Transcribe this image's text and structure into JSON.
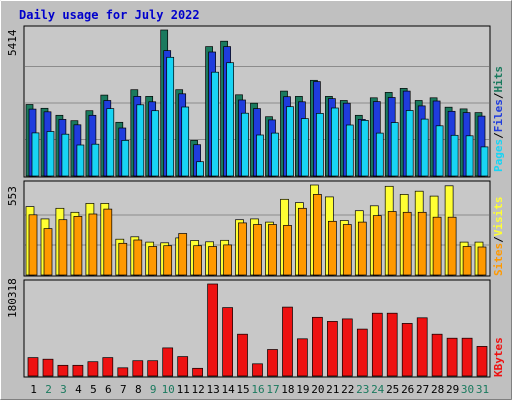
{
  "title": "Daily usage for July 2022",
  "colors": {
    "background": "#c0c0c0",
    "title": "#0000cc",
    "hits": "#1a7a5e",
    "files": "#1f3cdd",
    "pages": "#18d4f4",
    "visits": "#ffff33",
    "sites": "#ff9900",
    "kbytes": "#ee1111",
    "weekend_label": "#1a7a5e",
    "weekday_label": "#000000",
    "panel_bg": "#c8c8c8"
  },
  "legend": {
    "top": [
      {
        "label": "Pages",
        "color": "#18d4f4"
      },
      {
        "label": "/",
        "color": "#000000"
      },
      {
        "label": "Files",
        "color": "#1f3cdd"
      },
      {
        "label": "/",
        "color": "#000000"
      },
      {
        "label": "Hits",
        "color": "#1a7a5e"
      }
    ],
    "middle": [
      {
        "label": "Sites",
        "color": "#ff9900"
      },
      {
        "label": "/",
        "color": "#000000"
      },
      {
        "label": "Visits",
        "color": "#ffff33"
      }
    ],
    "bottom": [
      {
        "label": "KBytes",
        "color": "#ee1111"
      }
    ]
  },
  "chart_data": [
    {
      "type": "bar",
      "panel": "hits-files-pages",
      "ymax_label": "5414",
      "ymax": 5414,
      "categories": [
        "1",
        "2",
        "3",
        "4",
        "5",
        "6",
        "7",
        "8",
        "9",
        "10",
        "11",
        "12",
        "13",
        "14",
        "15",
        "16",
        "17",
        "18",
        "19",
        "20",
        "21",
        "22",
        "23",
        "24",
        "25",
        "26",
        "27",
        "28",
        "29",
        "30",
        "31"
      ],
      "series": [
        {
          "name": "Hits",
          "values": [
            2650,
            2510,
            2250,
            2050,
            2420,
            3000,
            1990,
            3200,
            2950,
            5414,
            3200,
            1320,
            4800,
            5000,
            3010,
            2700,
            2200,
            3150,
            2950,
            3550,
            2950,
            2800,
            2250,
            2900,
            3100,
            3250,
            2800,
            2900,
            2550,
            2490,
            2350
          ]
        },
        {
          "name": "Files",
          "values": [
            2480,
            2380,
            2100,
            1900,
            2250,
            2800,
            1780,
            2950,
            2750,
            4650,
            3050,
            1160,
            4600,
            4800,
            2820,
            2500,
            2080,
            2940,
            2750,
            3500,
            2870,
            2700,
            2100,
            2760,
            2910,
            3150,
            2600,
            2780,
            2400,
            2350,
            2220
          ]
        },
        {
          "name": "Pages",
          "values": [
            1600,
            1650,
            1550,
            1150,
            1180,
            2500,
            1320,
            2640,
            2420,
            4400,
            2560,
            530,
            3850,
            4200,
            2330,
            1520,
            1590,
            2570,
            2130,
            2320,
            2520,
            1890,
            2060,
            1590,
            1980,
            2430,
            2110,
            1860,
            1510,
            1490,
            1080
          ]
        }
      ]
    },
    {
      "type": "bar",
      "panel": "visits-sites",
      "ymax_label": "553",
      "ymax": 553,
      "categories": [
        "1",
        "2",
        "3",
        "4",
        "5",
        "6",
        "7",
        "8",
        "9",
        "10",
        "11",
        "12",
        "13",
        "14",
        "15",
        "16",
        "17",
        "18",
        "19",
        "20",
        "21",
        "22",
        "23",
        "24",
        "25",
        "26",
        "27",
        "28",
        "29",
        "30",
        "31"
      ],
      "series": [
        {
          "name": "Visits",
          "values": [
            420,
            345,
            410,
            385,
            440,
            440,
            220,
            235,
            202,
            198,
            228,
            212,
            204,
            213,
            340,
            345,
            325,
            465,
            445,
            553,
            480,
            335,
            395,
            425,
            545,
            495,
            515,
            485,
            548,
            202,
            202
          ]
        },
        {
          "name": "Sites",
          "values": [
            370,
            285,
            340,
            360,
            375,
            405,
            195,
            215,
            175,
            180,
            255,
            180,
            175,
            185,
            320,
            310,
            310,
            305,
            410,
            495,
            330,
            310,
            325,
            365,
            390,
            385,
            385,
            355,
            355,
            175,
            172
          ]
        }
      ]
    },
    {
      "type": "bar",
      "panel": "kbytes",
      "ymax_label": "180318",
      "ymax": 180318,
      "categories": [
        "1",
        "2",
        "3",
        "4",
        "5",
        "6",
        "7",
        "8",
        "9",
        "10",
        "11",
        "12",
        "13",
        "14",
        "15",
        "16",
        "17",
        "18",
        "19",
        "20",
        "21",
        "22",
        "23",
        "24",
        "25",
        "26",
        "27",
        "28",
        "29",
        "30",
        "31"
      ],
      "series": [
        {
          "name": "KBytes",
          "values": [
            36000,
            33000,
            21000,
            21000,
            28000,
            36000,
            16000,
            30000,
            30000,
            55000,
            38000,
            15000,
            180318,
            134000,
            82000,
            24000,
            52000,
            135000,
            73000,
            115000,
            107000,
            112000,
            92000,
            123000,
            123000,
            103000,
            114000,
            82000,
            74000,
            74000,
            58000
          ]
        }
      ]
    }
  ],
  "x_labels": [
    {
      "text": "1",
      "weekend": false
    },
    {
      "text": "2",
      "weekend": true
    },
    {
      "text": "3",
      "weekend": true
    },
    {
      "text": "4",
      "weekend": false
    },
    {
      "text": "5",
      "weekend": false
    },
    {
      "text": "6",
      "weekend": false
    },
    {
      "text": "7",
      "weekend": false
    },
    {
      "text": "8",
      "weekend": false
    },
    {
      "text": "9",
      "weekend": true
    },
    {
      "text": "10",
      "weekend": true
    },
    {
      "text": "11",
      "weekend": false
    },
    {
      "text": "12",
      "weekend": false
    },
    {
      "text": "13",
      "weekend": false
    },
    {
      "text": "14",
      "weekend": false
    },
    {
      "text": "15",
      "weekend": false
    },
    {
      "text": "16",
      "weekend": true
    },
    {
      "text": "17",
      "weekend": true
    },
    {
      "text": "18",
      "weekend": false
    },
    {
      "text": "19",
      "weekend": false
    },
    {
      "text": "20",
      "weekend": false
    },
    {
      "text": "21",
      "weekend": false
    },
    {
      "text": "22",
      "weekend": false
    },
    {
      "text": "23",
      "weekend": true
    },
    {
      "text": "24",
      "weekend": true
    },
    {
      "text": "25",
      "weekend": false
    },
    {
      "text": "26",
      "weekend": false
    },
    {
      "text": "27",
      "weekend": false
    },
    {
      "text": "28",
      "weekend": false
    },
    {
      "text": "29",
      "weekend": false
    },
    {
      "text": "30",
      "weekend": true
    },
    {
      "text": "31",
      "weekend": true
    }
  ]
}
